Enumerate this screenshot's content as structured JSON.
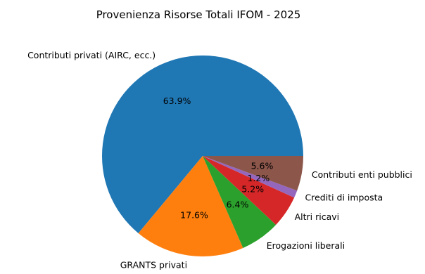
{
  "chart_data": {
    "type": "pie",
    "title": "Provenienza Risorse Totali IFOM - 2025",
    "slices": [
      {
        "label": "Contributi privati (AIRC, ecc.)",
        "value": 63.9,
        "pct_label": "63.9%",
        "color": "#1f77b4"
      },
      {
        "label": "GRANTS privati",
        "value": 17.6,
        "pct_label": "17.6%",
        "color": "#ff7f0e"
      },
      {
        "label": "Erogazioni liberali",
        "value": 6.4,
        "pct_label": "6.4%",
        "color": "#2ca02c"
      },
      {
        "label": "Altri ricavi",
        "value": 5.2,
        "pct_label": "5.2%",
        "color": "#d62728"
      },
      {
        "label": "Crediti di imposta",
        "value": 1.2,
        "pct_label": "1.2%",
        "color": "#9467bd"
      },
      {
        "label": "Contributi enti pubblici",
        "value": 5.6,
        "pct_label": "5.6%",
        "color": "#8c564b"
      }
    ],
    "start_angle_deg": 0,
    "direction": "counterclockwise",
    "legend": "none"
  }
}
